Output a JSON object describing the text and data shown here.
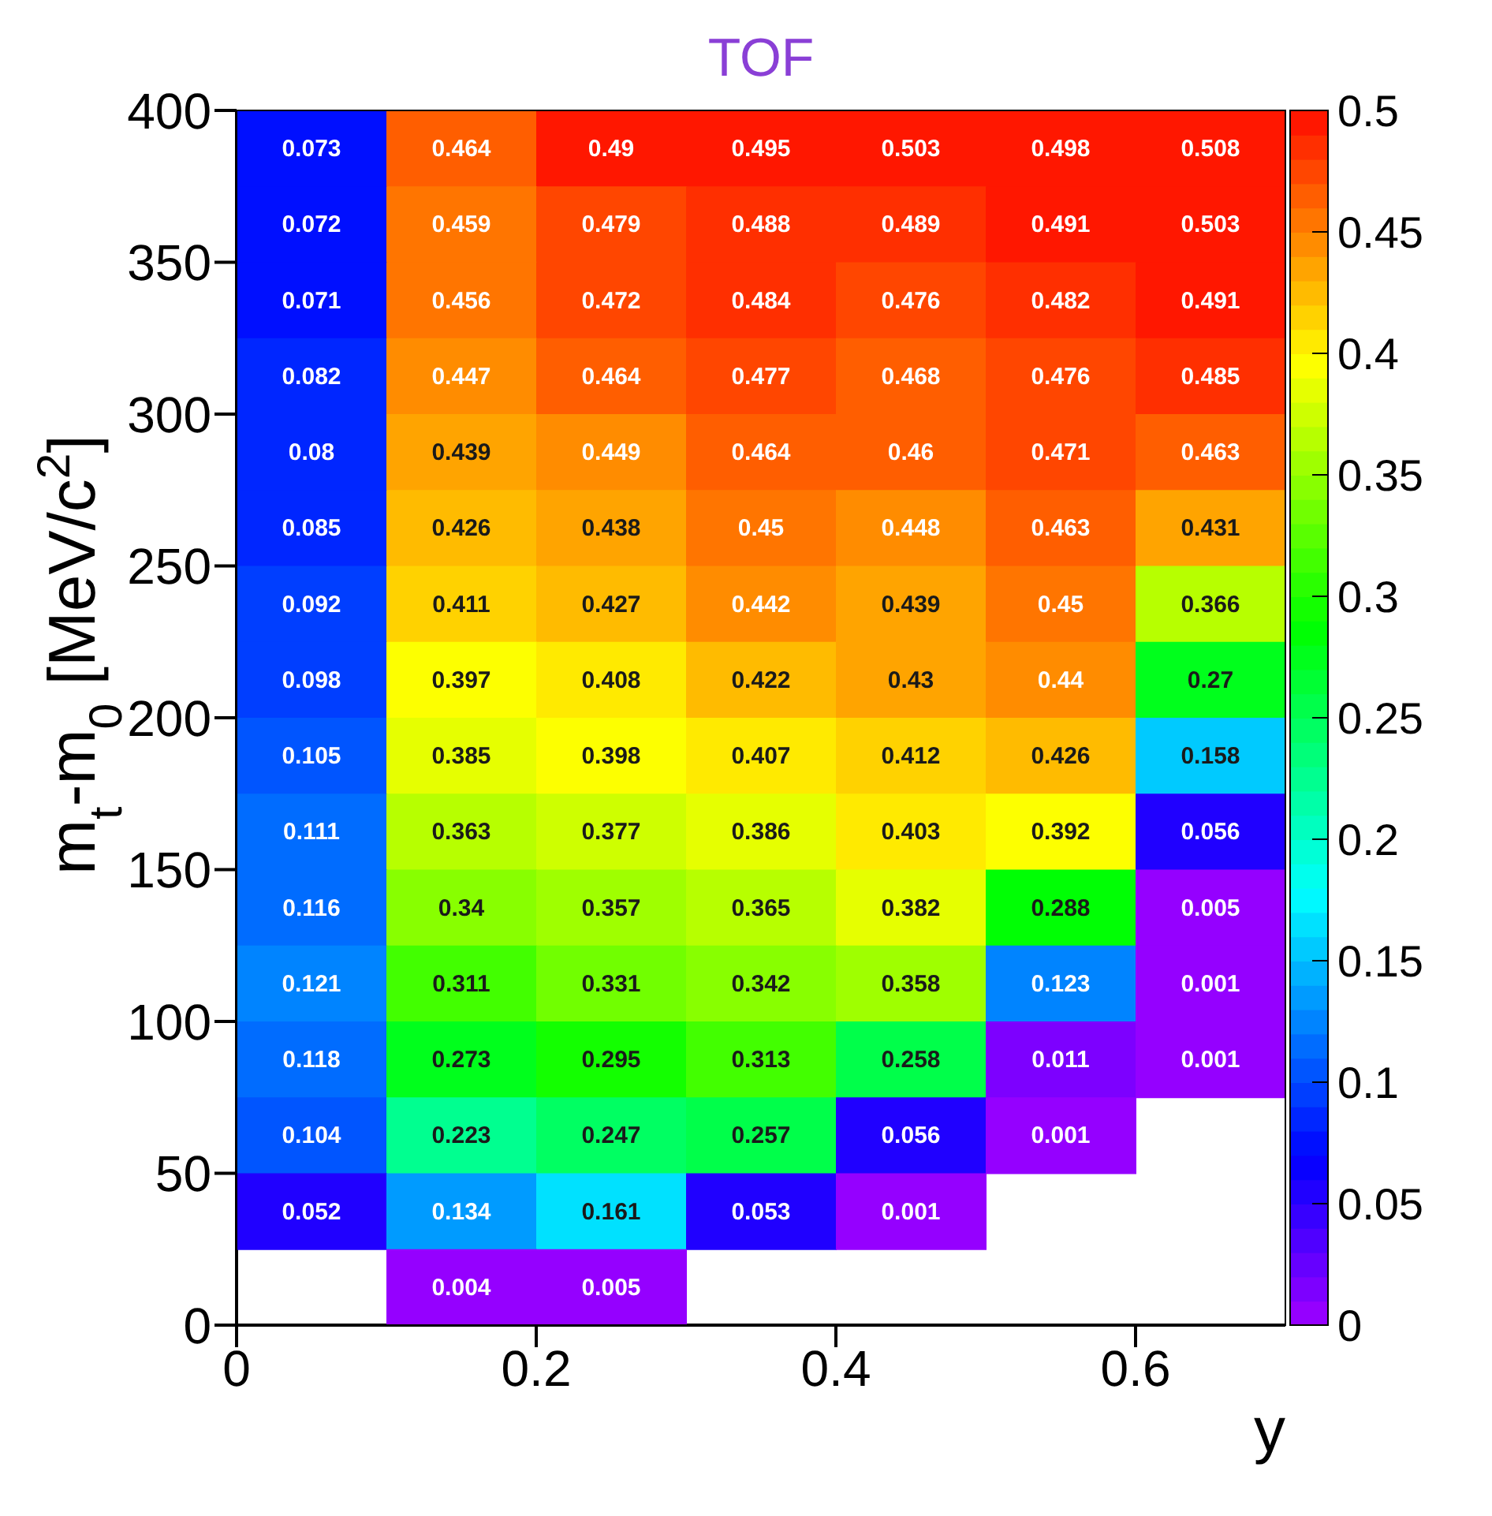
{
  "chart_data": {
    "type": "heatmap",
    "title": "TOF",
    "xlabel": "y",
    "ylabel": "m$_{t}$-m$_{0}$ [MeV/c$^{2}$]",
    "xlim": [
      0,
      0.7
    ],
    "xticks": [
      0,
      0.2,
      0.4,
      0.6
    ],
    "ylim": [
      0,
      400
    ],
    "yticks": [
      0,
      50,
      100,
      150,
      200,
      250,
      300,
      350,
      400
    ],
    "clim": [
      0,
      0.5
    ],
    "cticks": [
      0,
      0.05,
      0.1,
      0.15,
      0.2,
      0.25,
      0.3,
      0.35,
      0.4,
      0.45,
      0.5
    ],
    "data_labels": true,
    "cells": [
      [
        0.073,
        0.464,
        0.49,
        0.495,
        0.503,
        0.498,
        0.508
      ],
      [
        0.072,
        0.459,
        0.479,
        0.488,
        0.489,
        0.491,
        0.503
      ],
      [
        0.071,
        0.456,
        0.472,
        0.484,
        0.476,
        0.482,
        0.491
      ],
      [
        0.082,
        0.447,
        0.464,
        0.477,
        0.468,
        0.476,
        0.485
      ],
      [
        0.08,
        0.439,
        0.449,
        0.464,
        0.46,
        0.471,
        0.463
      ],
      [
        0.085,
        0.426,
        0.438,
        0.45,
        0.448,
        0.463,
        0.431
      ],
      [
        0.092,
        0.411,
        0.427,
        0.442,
        0.439,
        0.45,
        0.366
      ],
      [
        0.098,
        0.397,
        0.408,
        0.422,
        0.43,
        0.44,
        0.27
      ],
      [
        0.105,
        0.385,
        0.398,
        0.407,
        0.412,
        0.426,
        0.158
      ],
      [
        0.111,
        0.363,
        0.377,
        0.386,
        0.403,
        0.392,
        0.056
      ],
      [
        0.116,
        0.34,
        0.357,
        0.365,
        0.382,
        0.288,
        0.005
      ],
      [
        0.121,
        0.311,
        0.331,
        0.342,
        0.358,
        0.123,
        0.001
      ],
      [
        0.118,
        0.273,
        0.295,
        0.313,
        0.258,
        0.011,
        0.001
      ],
      [
        0.104,
        0.223,
        0.247,
        0.257,
        0.056,
        0.001,
        null
      ],
      [
        0.052,
        0.134,
        0.161,
        0.053,
        0.001,
        null,
        null
      ],
      [
        null,
        0.004,
        0.005,
        null,
        null,
        null,
        null
      ]
    ]
  }
}
